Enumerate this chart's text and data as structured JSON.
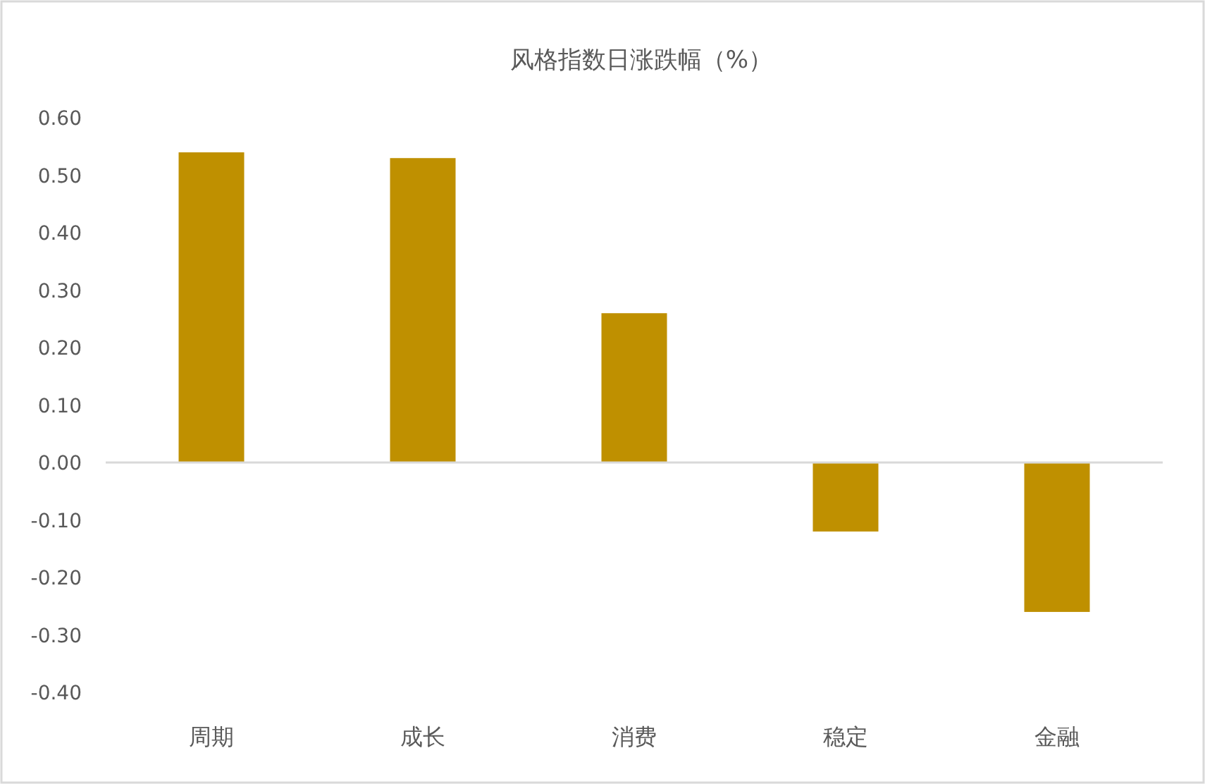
{
  "chart_data": {
    "type": "bar",
    "title": "风格指数日涨跌幅（%）",
    "categories": [
      "周期",
      "成长",
      "消费",
      "稳定",
      "金融"
    ],
    "values": [
      0.54,
      0.53,
      0.26,
      -0.12,
      -0.26
    ],
    "color": "#bf9000",
    "ylim": [
      -0.4,
      0.6
    ],
    "yticks": [
      {
        "value": -0.4,
        "label": "-0.40"
      },
      {
        "value": -0.3,
        "label": "-0.30"
      },
      {
        "value": -0.2,
        "label": "-0.20"
      },
      {
        "value": -0.1,
        "label": "-0.10"
      },
      {
        "value": 0,
        "label": "0.00"
      },
      {
        "value": 0.1,
        "label": "0.10"
      },
      {
        "value": 0.2,
        "label": "0.20"
      },
      {
        "value": 0.3,
        "label": "0.30"
      },
      {
        "value": 0.4,
        "label": "0.40"
      },
      {
        "value": 0.5,
        "label": "0.50"
      },
      {
        "value": 0.6,
        "label": "0.60"
      }
    ]
  }
}
